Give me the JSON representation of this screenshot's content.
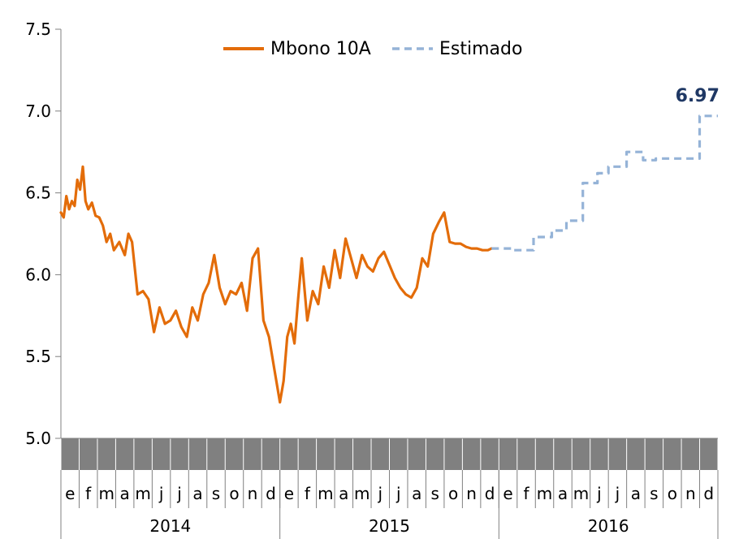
{
  "chart_data": {
    "type": "line",
    "title": "",
    "ylabel": "",
    "xlabel": "",
    "ylim": [
      5.0,
      7.5
    ],
    "yticks": [
      "5.0",
      "5.5",
      "6.0",
      "6.5",
      "7.0",
      "7.5"
    ],
    "months": [
      "e",
      "f",
      "m",
      "a",
      "m",
      "j",
      "j",
      "a",
      "s",
      "o",
      "n",
      "d",
      "e",
      "f",
      "m",
      "a",
      "m",
      "j",
      "j",
      "a",
      "s",
      "o",
      "n",
      "d",
      "e",
      "f",
      "m",
      "a",
      "m",
      "j",
      "j",
      "a",
      "s",
      "o",
      "n",
      "d"
    ],
    "years": [
      "2014",
      "2015",
      "2016"
    ],
    "legend": {
      "position": "top",
      "items": [
        "Mbono 10A",
        "Estimado"
      ]
    },
    "series": [
      {
        "name": "Mbono 10A",
        "color": "#e36c09",
        "style": "solid",
        "x": [
          0.0,
          0.15,
          0.3,
          0.45,
          0.6,
          0.75,
          0.9,
          1.05,
          1.2,
          1.35,
          1.5,
          1.7,
          1.9,
          2.1,
          2.3,
          2.5,
          2.7,
          2.9,
          3.2,
          3.5,
          3.7,
          3.9,
          4.2,
          4.5,
          4.8,
          5.1,
          5.4,
          5.7,
          6.0,
          6.3,
          6.6,
          6.9,
          7.2,
          7.5,
          7.8,
          8.1,
          8.4,
          8.7,
          9.0,
          9.3,
          9.6,
          9.9,
          10.2,
          10.5,
          10.8,
          11.1,
          11.4,
          11.7,
          12.0,
          12.2,
          12.4,
          12.6,
          12.8,
          13.0,
          13.2,
          13.5,
          13.8,
          14.1,
          14.4,
          14.7,
          15.0,
          15.3,
          15.6,
          15.9,
          16.2,
          16.5,
          16.8,
          17.1,
          17.4,
          17.7,
          18.0,
          18.3,
          18.6,
          18.9,
          19.2,
          19.5,
          19.8,
          20.1,
          20.4,
          20.7,
          21.0,
          21.3,
          21.6,
          21.9,
          22.2,
          22.5,
          22.8,
          23.1,
          23.4,
          23.6
        ],
        "y": [
          6.38,
          6.35,
          6.48,
          6.4,
          6.45,
          6.42,
          6.58,
          6.52,
          6.66,
          6.45,
          6.4,
          6.44,
          6.36,
          6.35,
          6.3,
          6.2,
          6.25,
          6.15,
          6.2,
          6.12,
          6.25,
          6.2,
          5.88,
          5.9,
          5.85,
          5.65,
          5.8,
          5.7,
          5.72,
          5.78,
          5.68,
          5.62,
          5.8,
          5.72,
          5.88,
          5.95,
          6.12,
          5.92,
          5.82,
          5.9,
          5.88,
          5.95,
          5.78,
          6.1,
          6.16,
          5.72,
          5.62,
          5.42,
          5.22,
          5.35,
          5.62,
          5.7,
          5.58,
          5.85,
          6.1,
          5.72,
          5.9,
          5.82,
          6.05,
          5.92,
          6.15,
          5.98,
          6.22,
          6.1,
          5.98,
          6.12,
          6.05,
          6.02,
          6.1,
          6.14,
          6.06,
          5.98,
          5.92,
          5.88,
          5.86,
          5.92,
          6.1,
          6.05,
          6.25,
          6.32,
          6.38,
          6.2,
          6.19,
          6.19,
          6.17,
          6.16,
          6.16,
          6.15,
          6.15,
          6.16
        ]
      },
      {
        "name": "Estimado",
        "color": "#95b3d7",
        "style": "dashed",
        "x": [
          23.6,
          24.8,
          24.8,
          25.9,
          25.9,
          26.9,
          26.9,
          27.7,
          27.7,
          28.6,
          28.6,
          29.4,
          29.4,
          30.0,
          30.0,
          31.0,
          31.0,
          31.9,
          31.9,
          32.6,
          32.6,
          33.6,
          33.6,
          35.0,
          35.0,
          36.0
        ],
        "y": [
          6.16,
          6.16,
          6.15,
          6.15,
          6.23,
          6.23,
          6.27,
          6.27,
          6.33,
          6.33,
          6.56,
          6.56,
          6.62,
          6.62,
          6.66,
          6.66,
          6.75,
          6.75,
          6.7,
          6.7,
          6.71,
          6.71,
          6.71,
          6.71,
          6.97,
          6.97
        ]
      }
    ],
    "annotations": [
      {
        "text": "6.97",
        "color": "#1f3864",
        "x": 35.5,
        "y": 6.97
      }
    ]
  }
}
